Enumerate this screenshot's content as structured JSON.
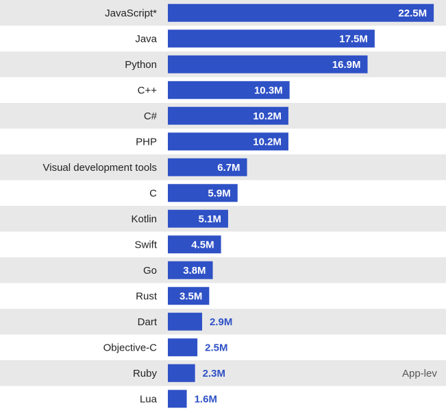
{
  "chart_data": {
    "type": "bar",
    "orientation": "horizontal",
    "categories": [
      "JavaScript*",
      "Java",
      "Python",
      "C++",
      "C#",
      "PHP",
      "Visual development tools",
      "C",
      "Kotlin",
      "Swift",
      "Go",
      "Rust",
      "Dart",
      "Objective-C",
      "Ruby",
      "Lua"
    ],
    "values": [
      22.5,
      17.5,
      16.9,
      10.3,
      10.2,
      10.2,
      6.7,
      5.9,
      5.1,
      4.5,
      3.8,
      3.5,
      2.9,
      2.5,
      2.3,
      1.6
    ],
    "value_labels": [
      "22.5M",
      "17.5M",
      "16.9M",
      "10.3M",
      "10.2M",
      "10.2M",
      "6.7M",
      "5.9M",
      "5.1M",
      "4.5M",
      "3.8M",
      "3.5M",
      "2.9M",
      "2.5M",
      "2.3M",
      "1.6M"
    ],
    "grid": false,
    "row_banding": true,
    "colors": {
      "bar": "#2f51c6",
      "band": "#e8e8e8",
      "label_inside": "#ffffff",
      "label_outside": "#2f51c6",
      "category_text": "#222222",
      "annotation": "#555555"
    }
  },
  "annotation": "App-lev"
}
